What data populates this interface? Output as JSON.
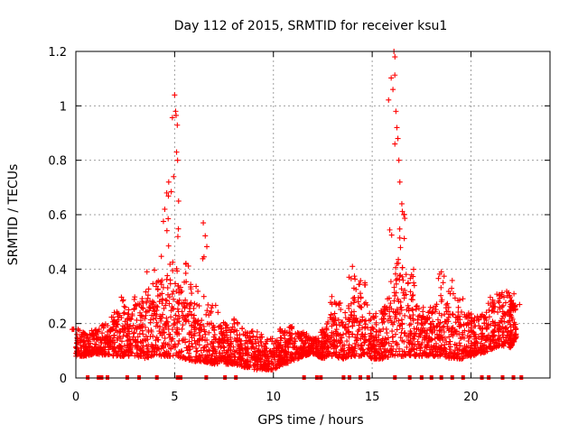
{
  "chart_data": {
    "type": "scatter",
    "title": "Day 112 of 2015, SRMTID for receiver ksu1",
    "xlabel": "GPS time / hours",
    "ylabel": "SRMTID / TECUs",
    "xlim": [
      0,
      24
    ],
    "ylim": [
      0,
      1.2
    ],
    "xticks": [
      0,
      5,
      10,
      15,
      20
    ],
    "xtick_labels": [
      "0",
      "5",
      "10",
      "15",
      "20"
    ],
    "yticks": [
      0,
      0.2,
      0.4,
      0.6,
      0.8,
      1.0,
      1.2
    ],
    "ytick_labels": [
      "0",
      "0.2",
      "0.4",
      "0.6",
      "0.8",
      "1",
      "1.2"
    ],
    "grid": true,
    "marker": "+",
    "color": "#ff0000",
    "series": [
      {
        "name": "SRMTID",
        "description": "binned envelope of estimated values (hour, typical min, typical max, occasional peak)",
        "envelope": [
          [
            0.0,
            0.08,
            0.16,
            0.18
          ],
          [
            0.5,
            0.08,
            0.16,
            0.17
          ],
          [
            1.0,
            0.09,
            0.17,
            0.18
          ],
          [
            1.5,
            0.08,
            0.18,
            0.2
          ],
          [
            2.0,
            0.08,
            0.22,
            0.25
          ],
          [
            2.5,
            0.08,
            0.25,
            0.3
          ],
          [
            3.0,
            0.08,
            0.26,
            0.3
          ],
          [
            3.5,
            0.07,
            0.28,
            0.39
          ],
          [
            4.0,
            0.08,
            0.3,
            0.45
          ],
          [
            4.5,
            0.08,
            0.4,
            0.72
          ],
          [
            5.0,
            0.08,
            0.45,
            1.04
          ],
          [
            5.5,
            0.07,
            0.3,
            0.43
          ],
          [
            6.0,
            0.06,
            0.28,
            0.35
          ],
          [
            6.5,
            0.06,
            0.26,
            0.57
          ],
          [
            7.0,
            0.05,
            0.22,
            0.28
          ],
          [
            7.5,
            0.05,
            0.18,
            0.22
          ],
          [
            8.0,
            0.05,
            0.18,
            0.22
          ],
          [
            8.5,
            0.04,
            0.16,
            0.2
          ],
          [
            9.0,
            0.03,
            0.15,
            0.18
          ],
          [
            9.5,
            0.03,
            0.13,
            0.16
          ],
          [
            10.0,
            0.03,
            0.12,
            0.15
          ],
          [
            10.5,
            0.05,
            0.17,
            0.18
          ],
          [
            11.0,
            0.06,
            0.18,
            0.19
          ],
          [
            11.5,
            0.08,
            0.16,
            0.17
          ],
          [
            12.0,
            0.09,
            0.14,
            0.15
          ],
          [
            12.5,
            0.07,
            0.16,
            0.18
          ],
          [
            13.0,
            0.08,
            0.26,
            0.3
          ],
          [
            13.5,
            0.07,
            0.22,
            0.28
          ],
          [
            14.0,
            0.08,
            0.3,
            0.4
          ],
          [
            14.5,
            0.08,
            0.34,
            0.36
          ],
          [
            15.0,
            0.07,
            0.2,
            0.24
          ],
          [
            15.5,
            0.07,
            0.22,
            0.28
          ],
          [
            16.0,
            0.08,
            0.4,
            1.2
          ],
          [
            16.5,
            0.08,
            0.5,
            0.64
          ],
          [
            17.0,
            0.08,
            0.32,
            0.4
          ],
          [
            17.5,
            0.08,
            0.22,
            0.26
          ],
          [
            18.0,
            0.08,
            0.24,
            0.26
          ],
          [
            18.5,
            0.08,
            0.3,
            0.39
          ],
          [
            19.0,
            0.07,
            0.26,
            0.36
          ],
          [
            19.5,
            0.07,
            0.24,
            0.3
          ],
          [
            20.0,
            0.08,
            0.22,
            0.24
          ],
          [
            20.5,
            0.09,
            0.22,
            0.24
          ],
          [
            21.0,
            0.1,
            0.26,
            0.3
          ],
          [
            21.5,
            0.12,
            0.3,
            0.32
          ],
          [
            22.0,
            0.11,
            0.3,
            0.33
          ],
          [
            22.3,
            0.15,
            0.26,
            0.28
          ]
        ],
        "peaks": [
          [
            5.0,
            1.04
          ],
          [
            5.05,
            0.98
          ],
          [
            5.1,
            0.83
          ],
          [
            5.15,
            0.8
          ],
          [
            4.95,
            0.74
          ],
          [
            4.7,
            0.72
          ],
          [
            4.6,
            0.68
          ],
          [
            5.2,
            0.65
          ],
          [
            4.5,
            0.62
          ],
          [
            6.45,
            0.57
          ],
          [
            16.1,
            1.2
          ],
          [
            16.15,
            1.18
          ],
          [
            16.05,
            1.06
          ],
          [
            16.2,
            0.98
          ],
          [
            16.25,
            0.92
          ],
          [
            16.3,
            0.88
          ],
          [
            16.35,
            0.8
          ],
          [
            16.4,
            0.72
          ],
          [
            16.5,
            0.64
          ],
          [
            16.6,
            0.6
          ],
          [
            14.0,
            0.41
          ],
          [
            18.5,
            0.39
          ],
          [
            3.6,
            0.39
          ]
        ]
      }
    ],
    "x_axis_markers_hours": [
      0.6,
      1.15,
      1.3,
      1.6,
      2.6,
      3.2,
      4.1,
      5.15,
      5.3,
      6.6,
      7.55,
      8.1,
      11.55,
      12.2,
      12.4,
      13.55,
      13.85,
      14.4,
      14.8,
      16.15,
      16.9,
      17.5,
      18.0,
      18.5,
      19.05,
      19.6,
      20.55,
      20.9,
      21.6,
      22.15,
      22.55
    ]
  }
}
